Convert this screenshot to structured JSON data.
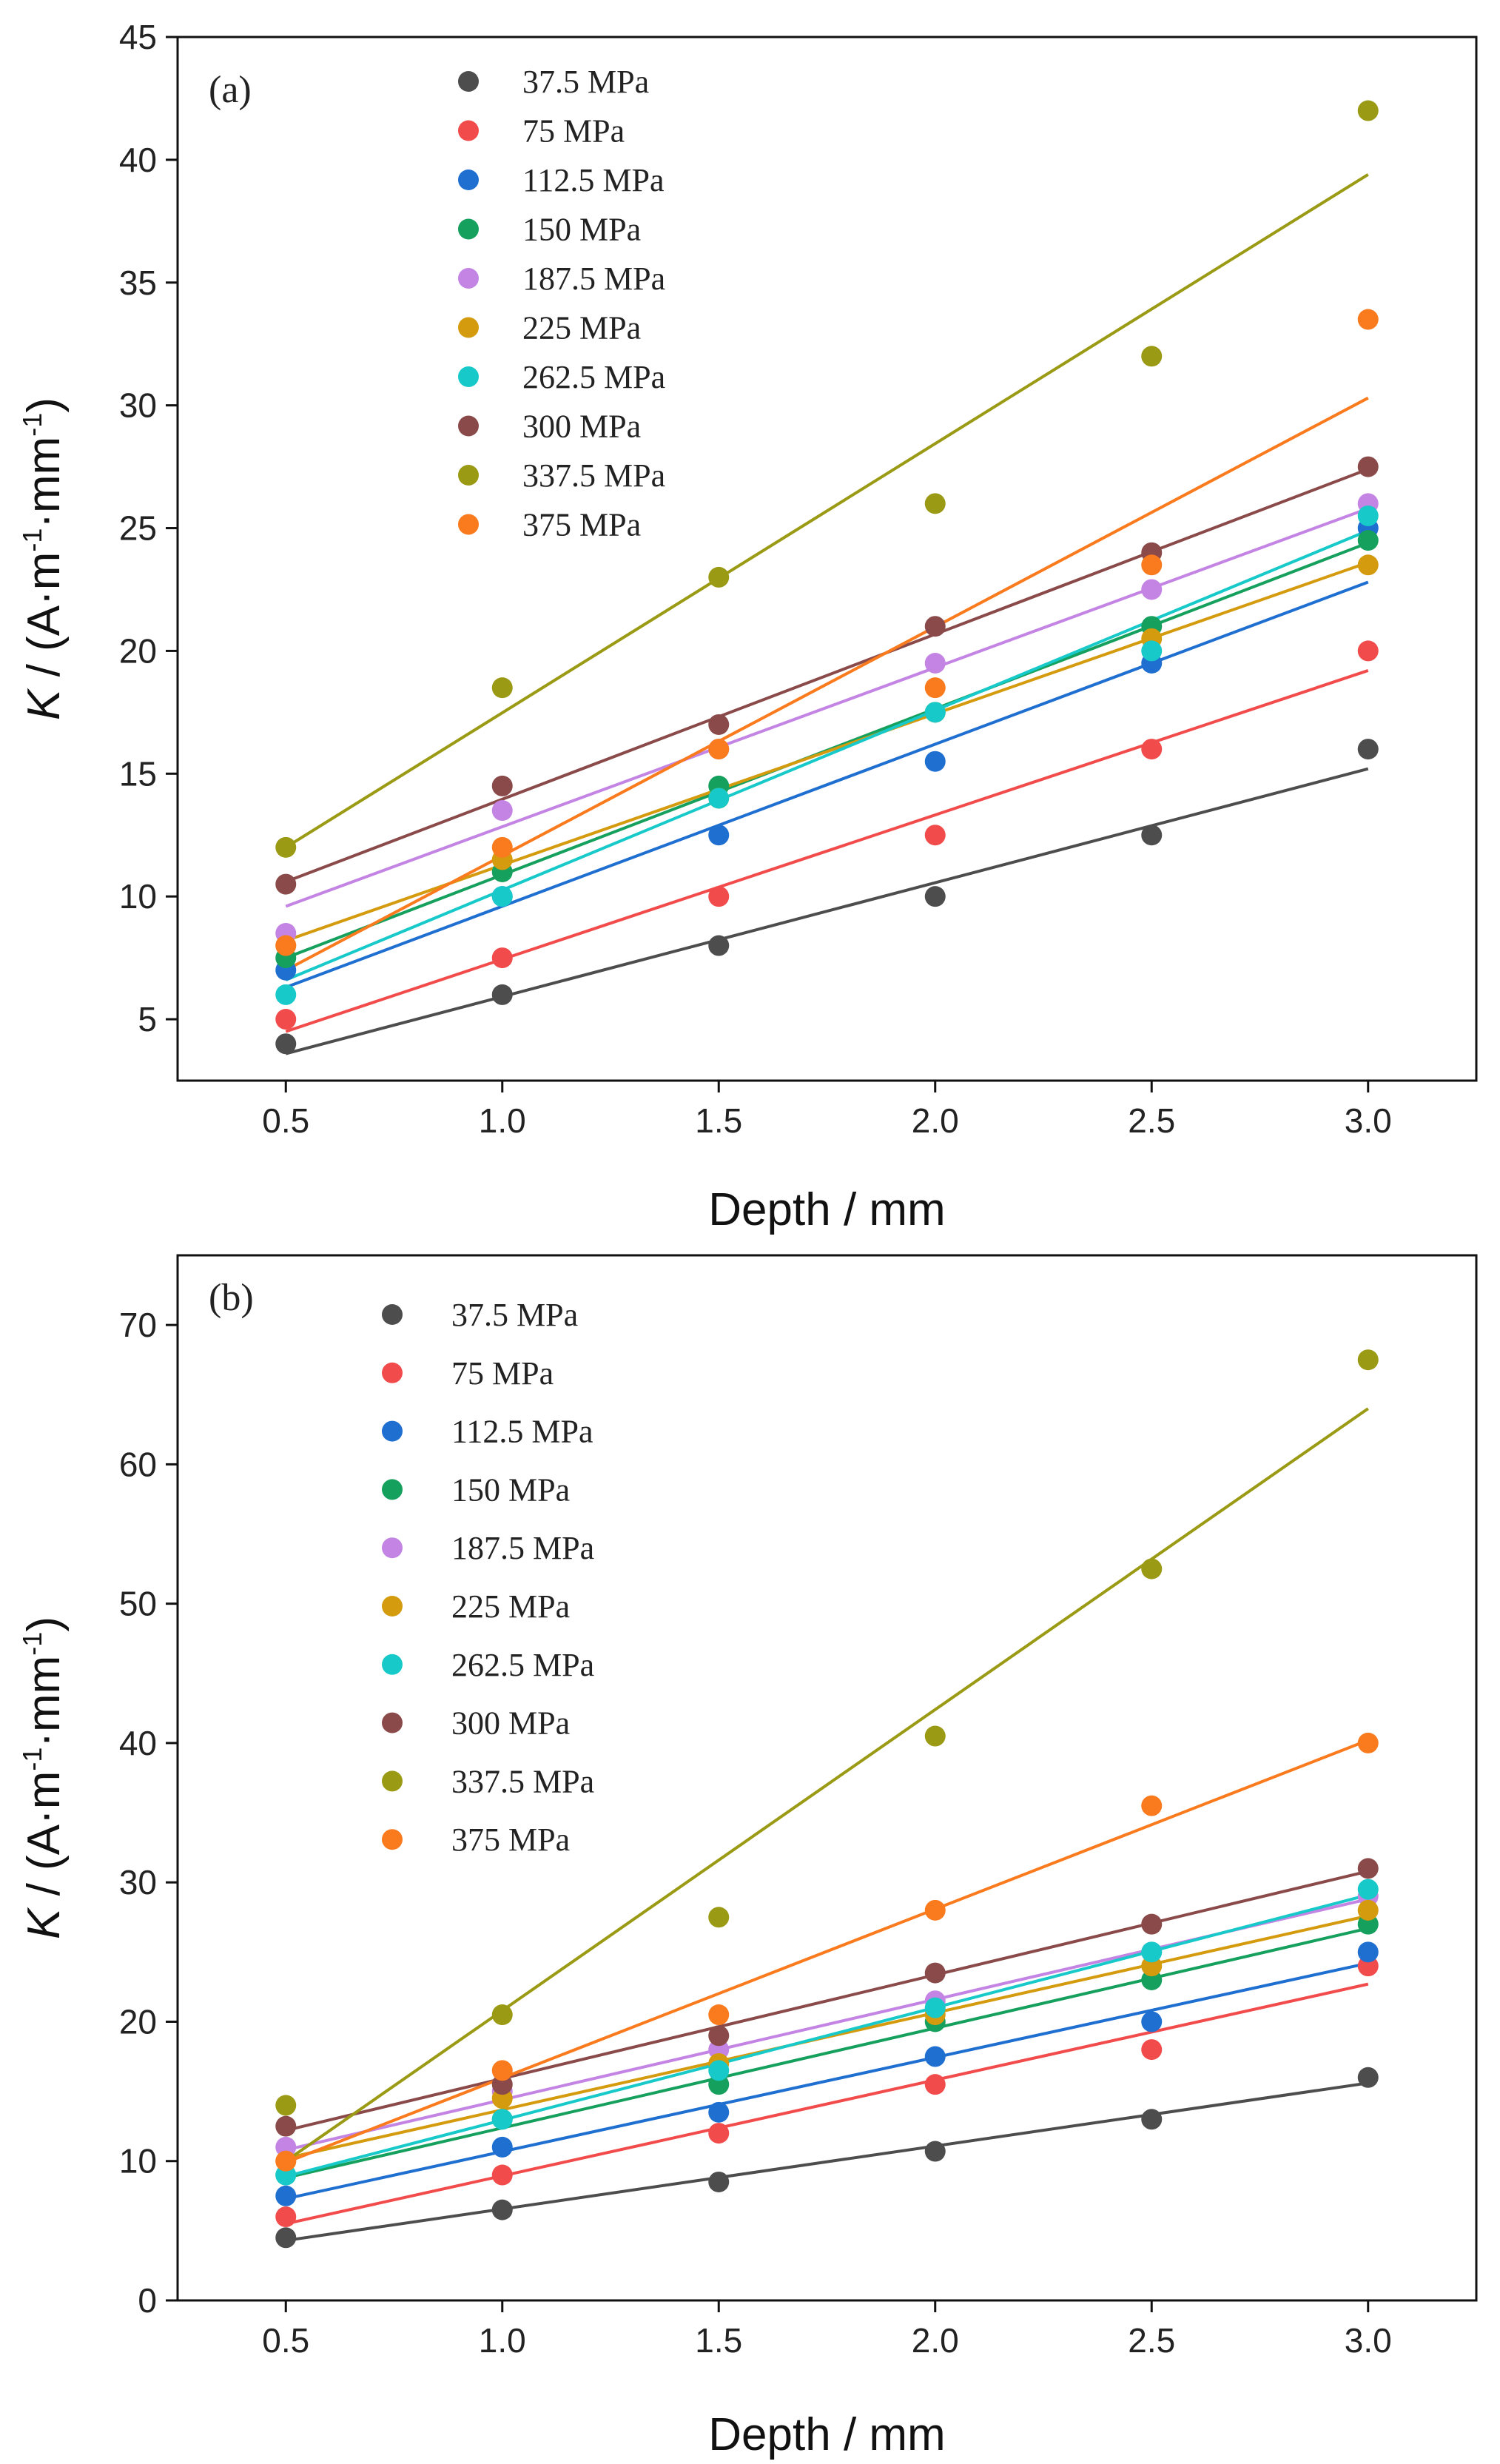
{
  "chart_data": [
    {
      "type": "scatter",
      "panel_label": "(a)",
      "xlabel": "Depth / mm",
      "ylabel_italic": "K",
      "ylabel_rest": " / (A·m",
      "ylabel_sup1": "-1",
      "ylabel_mid": "·mm",
      "ylabel_sup2": "-1",
      "ylabel_end": ")",
      "xlim": [
        0.25,
        3.25
      ],
      "ylim": [
        2.5,
        45
      ],
      "xticks": [
        0.5,
        1.0,
        1.5,
        2.0,
        2.5,
        3.0
      ],
      "xtick_labels": [
        "0.5",
        "1.0",
        "1.5",
        "2.0",
        "2.5",
        "3.0"
      ],
      "yticks": [
        5,
        10,
        15,
        20,
        25,
        30,
        35,
        40,
        45
      ],
      "ytick_labels": [
        "5",
        "10",
        "15",
        "20",
        "25",
        "30",
        "35",
        "40",
        "45"
      ],
      "legend_position": "top-left",
      "x": [
        0.5,
        1.0,
        1.5,
        2.0,
        2.5,
        3.0
      ],
      "series": [
        {
          "name": "37.5 MPa",
          "color": "#4d4d4d",
          "values": [
            4,
            6,
            8,
            10,
            12.5,
            16
          ],
          "fit": [
            3.6,
            15.2
          ]
        },
        {
          "name": "75 MPa",
          "color": "#f24b4b",
          "values": [
            5,
            7.5,
            10,
            12.5,
            16,
            20
          ],
          "fit": [
            4.5,
            19.2
          ]
        },
        {
          "name": "112.5 MPa",
          "color": "#1f6fd1",
          "values": [
            7,
            10,
            12.5,
            15.5,
            19.5,
            25
          ],
          "fit": [
            6.3,
            22.8
          ]
        },
        {
          "name": "150 MPa",
          "color": "#16a05d",
          "values": [
            7.5,
            11,
            14.5,
            17.5,
            21,
            24.5
          ],
          "fit": [
            7.5,
            24.4
          ]
        },
        {
          "name": "187.5 MPa",
          "color": "#c384e4",
          "values": [
            8.5,
            13.5,
            16,
            19.5,
            22.5,
            26
          ],
          "fit": [
            9.6,
            25.8
          ]
        },
        {
          "name": "225 MPa",
          "color": "#d59b0f",
          "values": [
            8,
            11.5,
            14,
            17.5,
            20.5,
            23.5
          ],
          "fit": [
            8.2,
            23.6
          ]
        },
        {
          "name": "262.5 MPa",
          "color": "#17c9c9",
          "values": [
            6,
            10,
            14,
            17.5,
            20,
            25.5
          ],
          "fit": [
            6.6,
            24.9
          ]
        },
        {
          "name": "300 MPa",
          "color": "#8b4a4a",
          "values": [
            10.5,
            14.5,
            17,
            21,
            24,
            27.5
          ],
          "fit": [
            10.6,
            27.4
          ]
        },
        {
          "name": "337.5 MPa",
          "color": "#9a9a14",
          "values": [
            12,
            18.5,
            23,
            26,
            32,
            42
          ],
          "fit": [
            12,
            39.4
          ]
        },
        {
          "name": "375 MPa",
          "color": "#fa7a1e",
          "values": [
            8,
            12,
            16,
            18.5,
            23.5,
            33.5
          ],
          "fit": [
            7,
            30.3
          ]
        }
      ]
    },
    {
      "type": "scatter",
      "panel_label": "(b)",
      "xlabel": "Depth / mm",
      "ylabel_italic": "K",
      "ylabel_rest": " / (A·m",
      "ylabel_sup1": "-1",
      "ylabel_mid": "·mm",
      "ylabel_sup2": "-1",
      "ylabel_end": ")",
      "xlim": [
        0.25,
        3.25
      ],
      "ylim": [
        0,
        75
      ],
      "xticks": [
        0.5,
        1.0,
        1.5,
        2.0,
        2.5,
        3.0
      ],
      "xtick_labels": [
        "0.5",
        "1.0",
        "1.5",
        "2.0",
        "2.5",
        "3.0"
      ],
      "yticks": [
        0,
        10,
        20,
        30,
        40,
        50,
        60,
        70
      ],
      "ytick_labels": [
        "0",
        "10",
        "20",
        "30",
        "40",
        "50",
        "60",
        "70"
      ],
      "legend_position": "top-left",
      "x": [
        0.5,
        1.0,
        1.5,
        2.0,
        2.5,
        3.0
      ],
      "series": [
        {
          "name": "37.5 MPa",
          "color": "#4d4d4d",
          "values": [
            4.5,
            6.5,
            8.5,
            10.7,
            13,
            16
          ],
          "fit": [
            4.3,
            15.6
          ]
        },
        {
          "name": "75 MPa",
          "color": "#f24b4b",
          "values": [
            6,
            9,
            12,
            15.5,
            18,
            24
          ],
          "fit": [
            5.5,
            22.7
          ]
        },
        {
          "name": "112.5 MPa",
          "color": "#1f6fd1",
          "values": [
            7.5,
            11,
            13.5,
            17.5,
            20,
            25
          ],
          "fit": [
            7.3,
            24.2
          ]
        },
        {
          "name": "150 MPa",
          "color": "#16a05d",
          "values": [
            9,
            13,
            15.5,
            20,
            23,
            27
          ],
          "fit": [
            8.8,
            26.7
          ]
        },
        {
          "name": "187.5 MPa",
          "color": "#c384e4",
          "values": [
            11,
            15,
            18,
            21.5,
            25,
            29
          ],
          "fit": [
            10.8,
            28.8
          ]
        },
        {
          "name": "225 MPa",
          "color": "#d59b0f",
          "values": [
            10,
            14.5,
            17,
            20.5,
            24,
            28
          ],
          "fit": [
            10.2,
            27.6
          ]
        },
        {
          "name": "262.5 MPa",
          "color": "#17c9c9",
          "values": [
            9,
            13,
            16.5,
            21,
            25,
            29.5
          ],
          "fit": [
            8.9,
            29.1
          ]
        },
        {
          "name": "300 MPa",
          "color": "#8b4a4a",
          "values": [
            12.5,
            15.5,
            19,
            23.5,
            27,
            31
          ],
          "fit": [
            12.2,
            30.8
          ]
        },
        {
          "name": "337.5 MPa",
          "color": "#9a9a14",
          "values": [
            14,
            20.5,
            27.5,
            40.5,
            52.5,
            67.5
          ],
          "fit": [
            10,
            64
          ]
        },
        {
          "name": "375 MPa",
          "color": "#fa7a1e",
          "values": [
            10,
            16.5,
            20.5,
            28,
            35.5,
            40
          ],
          "fit": [
            9.9,
            40.2
          ]
        }
      ]
    }
  ]
}
